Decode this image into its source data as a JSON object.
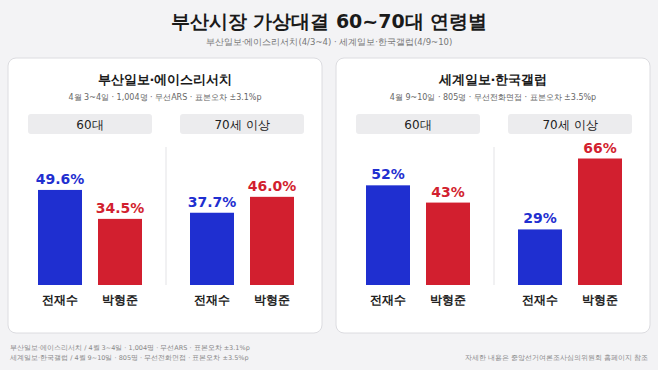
{
  "header": {
    "title": "부산시장 가상대결 60~70대 연령별",
    "subtitle": "부산일보·에이스리서치(4/3~4) · 세계일보·한국갤럽(4/9~10)"
  },
  "chart_data": [
    {
      "type": "bar",
      "title": "부산일보·에이스리서치",
      "subtitle": "4월 3~4일 · 1,004명 · 무선ARS · 표본오차 ±3.1%p",
      "categories": [
        "60대",
        "70세 이상"
      ],
      "series": [
        {
          "name": "전재수",
          "color": "#1f2fd0",
          "values": [
            49.6,
            37.7
          ],
          "value_labels": [
            "49.6%",
            "37.7%"
          ]
        },
        {
          "name": "박형준",
          "color": "#d21f2f",
          "values": [
            34.5,
            46.0
          ],
          "value_labels": [
            "34.5%",
            "46.0%"
          ]
        }
      ],
      "ylim": [
        0,
        72
      ],
      "tick_labels": false,
      "data_labels": true,
      "grid": false
    },
    {
      "type": "bar",
      "title": "세계일보·한국갤럽",
      "subtitle": "4월 9~10일 · 805명 · 무선전화면접 · 표본오차 ±3.5%p",
      "categories": [
        "60대",
        "70세 이상"
      ],
      "series": [
        {
          "name": "전재수",
          "color": "#1f2fd0",
          "values": [
            52,
            29
          ],
          "value_labels": [
            "52%",
            "29%"
          ]
        },
        {
          "name": "박형준",
          "color": "#d21f2f",
          "values": [
            43,
            66
          ],
          "value_labels": [
            "43%",
            "66%"
          ]
        }
      ],
      "ylim": [
        0,
        72
      ],
      "tick_labels": false,
      "data_labels": true,
      "grid": false
    }
  ],
  "footer": {
    "notes": [
      "부산일보·에이스리서치 / 4월 3~4일 · 1,004명 · 무선ARS · 표본오차 ±3.1%p",
      "세계일보·한국갤럽 / 4월 9~10일 · 805명 · 무선전화면접 · 표본오차 ±3.5%p"
    ],
    "source": "자세한 내용은 중앙선거여론조사심의위원회 홈페이지 참조"
  }
}
